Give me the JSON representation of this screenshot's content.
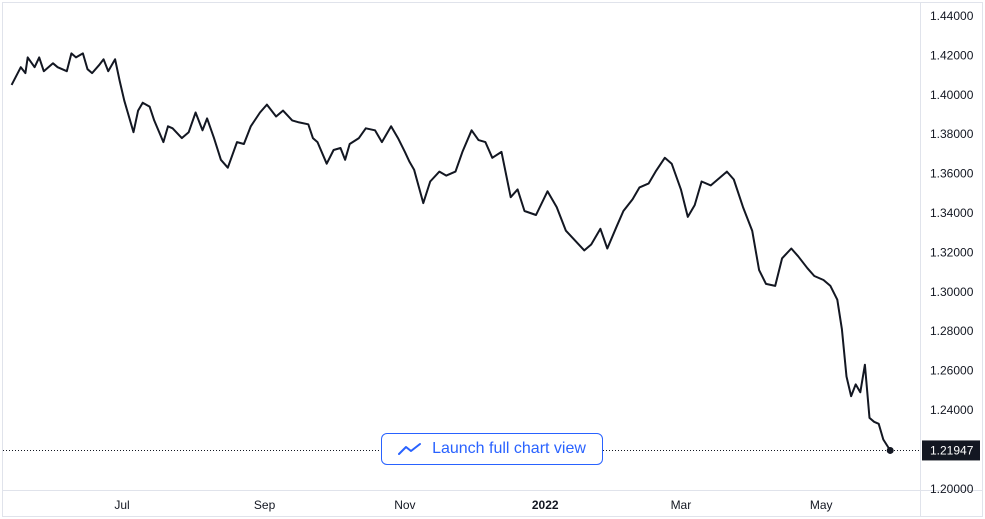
{
  "chart_data": {
    "type": "line",
    "title": "",
    "xlabel": "",
    "ylabel": "",
    "ylim": [
      1.2,
      1.44
    ],
    "grid": false,
    "y_ticks": [
      "1.44000",
      "1.42000",
      "1.40000",
      "1.38000",
      "1.36000",
      "1.34000",
      "1.32000",
      "1.30000",
      "1.28000",
      "1.26000",
      "1.24000",
      "1.20000"
    ],
    "x_ticks": [
      {
        "label": "Jul",
        "date": "2021-07-01",
        "bold": false
      },
      {
        "label": "Sep",
        "date": "2021-09-01",
        "bold": false
      },
      {
        "label": "Nov",
        "date": "2021-11-01",
        "bold": false
      },
      {
        "label": "2022",
        "date": "2022-01-01",
        "bold": true
      },
      {
        "label": "Mar",
        "date": "2022-03-01",
        "bold": false
      },
      {
        "label": "May",
        "date": "2022-05-01",
        "bold": false
      }
    ],
    "last_value": 1.21947,
    "last_value_label": "1.21947",
    "series": [
      {
        "color": "#131722",
        "points": [
          [
            "2021-05-14",
            1.405
          ],
          [
            "2021-05-18",
            1.414
          ],
          [
            "2021-05-20",
            1.411
          ],
          [
            "2021-05-21",
            1.419
          ],
          [
            "2021-05-24",
            1.414
          ],
          [
            "2021-05-26",
            1.419
          ],
          [
            "2021-05-28",
            1.412
          ],
          [
            "2021-06-01",
            1.416
          ],
          [
            "2021-06-03",
            1.414
          ],
          [
            "2021-06-07",
            1.412
          ],
          [
            "2021-06-09",
            1.421
          ],
          [
            "2021-06-11",
            1.419
          ],
          [
            "2021-06-14",
            1.421
          ],
          [
            "2021-06-16",
            1.413
          ],
          [
            "2021-06-18",
            1.411
          ],
          [
            "2021-06-21",
            1.415
          ],
          [
            "2021-06-23",
            1.418
          ],
          [
            "2021-06-25",
            1.412
          ],
          [
            "2021-06-28",
            1.418
          ],
          [
            "2021-06-30",
            1.407
          ],
          [
            "2021-07-02",
            1.397
          ],
          [
            "2021-07-06",
            1.381
          ],
          [
            "2021-07-08",
            1.392
          ],
          [
            "2021-07-10",
            1.396
          ],
          [
            "2021-07-13",
            1.394
          ],
          [
            "2021-07-15",
            1.387
          ],
          [
            "2021-07-19",
            1.376
          ],
          [
            "2021-07-21",
            1.384
          ],
          [
            "2021-07-23",
            1.383
          ],
          [
            "2021-07-27",
            1.378
          ],
          [
            "2021-07-30",
            1.381
          ],
          [
            "2021-08-02",
            1.391
          ],
          [
            "2021-08-05",
            1.382
          ],
          [
            "2021-08-07",
            1.388
          ],
          [
            "2021-08-10",
            1.378
          ],
          [
            "2021-08-13",
            1.367
          ],
          [
            "2021-08-16",
            1.363
          ],
          [
            "2021-08-20",
            1.376
          ],
          [
            "2021-08-23",
            1.375
          ],
          [
            "2021-08-26",
            1.384
          ],
          [
            "2021-08-30",
            1.391
          ],
          [
            "2021-09-02",
            1.395
          ],
          [
            "2021-09-06",
            1.389
          ],
          [
            "2021-09-09",
            1.392
          ],
          [
            "2021-09-13",
            1.387
          ],
          [
            "2021-09-16",
            1.386
          ],
          [
            "2021-09-20",
            1.385
          ],
          [
            "2021-09-22",
            1.378
          ],
          [
            "2021-09-24",
            1.376
          ],
          [
            "2021-09-28",
            1.365
          ],
          [
            "2021-10-01",
            1.372
          ],
          [
            "2021-10-04",
            1.373
          ],
          [
            "2021-10-06",
            1.367
          ],
          [
            "2021-10-08",
            1.375
          ],
          [
            "2021-10-12",
            1.378
          ],
          [
            "2021-10-15",
            1.383
          ],
          [
            "2021-10-19",
            1.382
          ],
          [
            "2021-10-22",
            1.376
          ],
          [
            "2021-10-26",
            1.384
          ],
          [
            "2021-10-29",
            1.378
          ],
          [
            "2021-11-01",
            1.371
          ],
          [
            "2021-11-03",
            1.366
          ],
          [
            "2021-11-05",
            1.362
          ],
          [
            "2021-11-09",
            1.345
          ],
          [
            "2021-11-12",
            1.356
          ],
          [
            "2021-11-16",
            1.361
          ],
          [
            "2021-11-19",
            1.359
          ],
          [
            "2021-11-23",
            1.361
          ],
          [
            "2021-11-26",
            1.371
          ],
          [
            "2021-11-30",
            1.382
          ],
          [
            "2021-12-03",
            1.377
          ],
          [
            "2021-12-06",
            1.376
          ],
          [
            "2021-12-09",
            1.368
          ],
          [
            "2021-12-13",
            1.371
          ],
          [
            "2021-12-17",
            1.348
          ],
          [
            "2021-12-20",
            1.352
          ],
          [
            "2021-12-23",
            1.341
          ],
          [
            "2021-12-28",
            1.339
          ],
          [
            "2022-01-02",
            1.351
          ],
          [
            "2022-01-06",
            1.343
          ],
          [
            "2022-01-10",
            1.331
          ],
          [
            "2022-01-14",
            1.326
          ],
          [
            "2022-01-18",
            1.321
          ],
          [
            "2022-01-21",
            1.324
          ],
          [
            "2022-01-25",
            1.332
          ],
          [
            "2022-01-28",
            1.322
          ],
          [
            "2022-02-01",
            1.333
          ],
          [
            "2022-02-04",
            1.341
          ],
          [
            "2022-02-08",
            1.347
          ],
          [
            "2022-02-11",
            1.353
          ],
          [
            "2022-02-15",
            1.355
          ],
          [
            "2022-02-18",
            1.361
          ],
          [
            "2022-02-22",
            1.368
          ],
          [
            "2022-02-25",
            1.365
          ],
          [
            "2022-03-01",
            1.352
          ],
          [
            "2022-03-04",
            1.338
          ],
          [
            "2022-03-07",
            1.344
          ],
          [
            "2022-03-10",
            1.356
          ],
          [
            "2022-03-14",
            1.354
          ],
          [
            "2022-03-17",
            1.357
          ],
          [
            "2022-03-21",
            1.361
          ],
          [
            "2022-03-24",
            1.357
          ],
          [
            "2022-03-28",
            1.343
          ],
          [
            "2022-04-01",
            1.331
          ],
          [
            "2022-04-04",
            1.311
          ],
          [
            "2022-04-07",
            1.304
          ],
          [
            "2022-04-11",
            1.303
          ],
          [
            "2022-04-14",
            1.317
          ],
          [
            "2022-04-18",
            1.322
          ],
          [
            "2022-04-21",
            1.318
          ],
          [
            "2022-04-25",
            1.312
          ],
          [
            "2022-04-28",
            1.308
          ],
          [
            "2022-05-02",
            1.306
          ],
          [
            "2022-05-05",
            1.303
          ],
          [
            "2022-05-08",
            1.296
          ],
          [
            "2022-05-10",
            1.281
          ],
          [
            "2022-05-12",
            1.257
          ],
          [
            "2022-05-14",
            1.247
          ],
          [
            "2022-05-16",
            1.253
          ],
          [
            "2022-05-18",
            1.249
          ],
          [
            "2022-05-20",
            1.263
          ],
          [
            "2022-05-22",
            1.236
          ],
          [
            "2022-05-24",
            1.234
          ],
          [
            "2022-05-26",
            1.233
          ],
          [
            "2022-05-28",
            1.225
          ],
          [
            "2022-05-31",
            1.21947
          ]
        ]
      }
    ]
  },
  "ui": {
    "launch_button_label": "Launch full chart view",
    "launch_button_icon": "trend-line-icon",
    "accent_color": "#2962ff",
    "price_label_bg": "#131722"
  }
}
